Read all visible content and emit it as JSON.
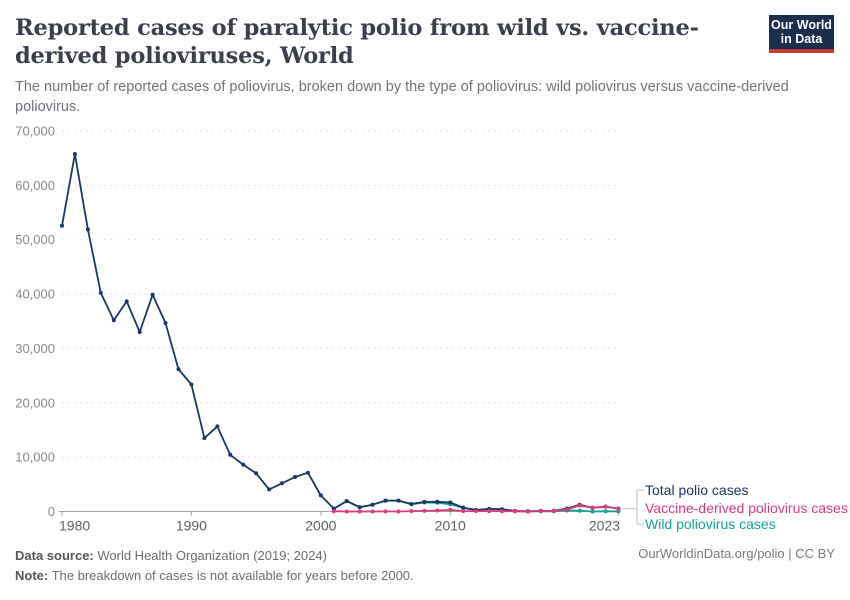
{
  "header": {
    "title": "Reported cases of paralytic polio from wild vs. vaccine-derived polioviruses, World",
    "subtitle": "The number of reported cases of poliovirus, broken down by the type of poliovirus: wild poliovirus versus vaccine-derived poliovirus.",
    "logo": {
      "line1": "Our World",
      "line2": "in Data"
    }
  },
  "footer": {
    "source_label": "Data source:",
    "source_value": " World Health Organization (2019; 2024)",
    "note_label": "Note:",
    "note_value": " The breakdown of cases is not available for years before 2000.",
    "link": "OurWorldinData.org/polio | CC BY"
  },
  "colors": {
    "total_navy": "#1a3763",
    "vaccine_pink": "#d73c7f",
    "wild_teal": "#18a096",
    "grid": "#e2e2e2",
    "axis": "#a3a3a3",
    "tick_label": "#616161",
    "y_label": "#898989",
    "connector": "#c8c8c8",
    "logo_bg": "#1c2e4d",
    "logo_red": "#c53d37"
  },
  "chart_data": {
    "type": "line",
    "title": "Reported cases of paralytic polio from wild vs. vaccine-derived polioviruses, World",
    "xlabel": "",
    "ylabel": "",
    "xlim": [
      1980,
      2023
    ],
    "ylim": [
      0,
      70000
    ],
    "grid": "horizontal-dashed",
    "legend_position": "right-of-plot",
    "x_ticks": [
      1980,
      1990,
      2000,
      2010,
      2023
    ],
    "y_ticks": [
      0,
      10000,
      20000,
      30000,
      40000,
      50000,
      60000,
      70000
    ],
    "series": [
      {
        "name": "Total polio cases",
        "color": "#1a3763",
        "x": [
          1980,
          1981,
          1982,
          1983,
          1984,
          1985,
          1986,
          1987,
          1988,
          1989,
          1990,
          1991,
          1992,
          1993,
          1994,
          1995,
          1996,
          1997,
          1998,
          1999,
          2000,
          2001,
          2002,
          2003,
          2004,
          2005,
          2006,
          2007,
          2008,
          2009,
          2010,
          2011,
          2012,
          2013,
          2014,
          2015,
          2016,
          2017,
          2018,
          2019,
          2020,
          2021,
          2022,
          2023
        ],
        "values": [
          52552,
          65774,
          51876,
          40220,
          35167,
          38660,
          33029,
          39866,
          34676,
          26179,
          23366,
          13510,
          15648,
          10440,
          8635,
          7035,
          4074,
          5185,
          6349,
          7141,
          2971,
          537,
          1922,
          784,
          1258,
          1998,
          2002,
          1387,
          1768,
          1783,
          1660,
          717,
          291,
          482,
          415,
          106,
          42,
          118,
          137,
          541,
          1253,
          694,
          908,
          536
        ]
      },
      {
        "name": "Vaccine-derived poliovirus cases",
        "color": "#d73c7f",
        "x": [
          2001,
          2002,
          2003,
          2004,
          2005,
          2006,
          2007,
          2008,
          2009,
          2010,
          2011,
          2012,
          2013,
          2014,
          2015,
          2016,
          2017,
          2018,
          2019,
          2020,
          2021,
          2022,
          2023
        ],
        "values": [
          54,
          4,
          0,
          3,
          19,
          5,
          72,
          116,
          179,
          308,
          67,
          68,
          66,
          56,
          32,
          5,
          96,
          104,
          365,
          1113,
          688,
          878,
          524
        ]
      },
      {
        "name": "Wild poliovirus cases",
        "color": "#18a096",
        "x": [
          2001,
          2002,
          2003,
          2004,
          2005,
          2006,
          2007,
          2008,
          2009,
          2010,
          2011,
          2012,
          2013,
          2014,
          2015,
          2016,
          2017,
          2018,
          2019,
          2020,
          2021,
          2022,
          2023
        ],
        "values": [
          483,
          1918,
          784,
          1255,
          1979,
          1997,
          1315,
          1652,
          1604,
          1352,
          650,
          223,
          416,
          359,
          74,
          37,
          22,
          33,
          176,
          140,
          6,
          30,
          12
        ]
      }
    ]
  }
}
